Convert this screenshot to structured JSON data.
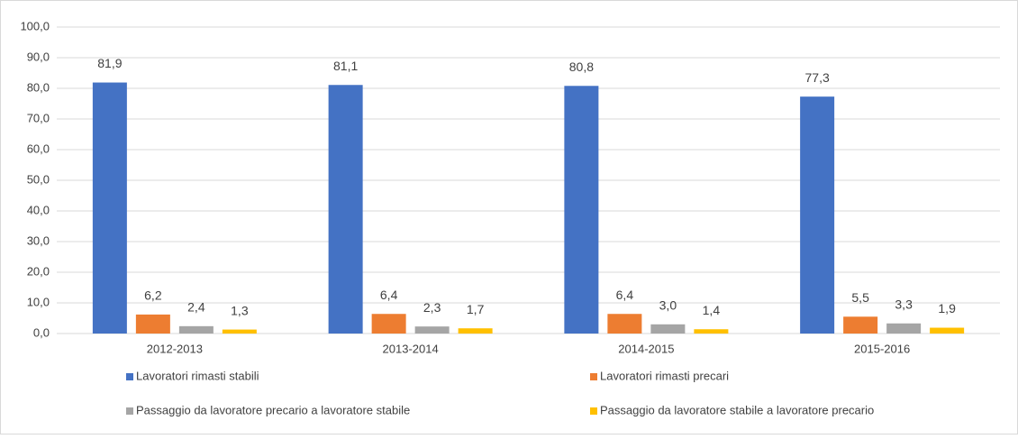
{
  "chart_data": {
    "type": "bar",
    "categories": [
      "2012-2013",
      "2013-2014",
      "2014-2015",
      "2015-2016"
    ],
    "series": [
      {
        "name": "Lavoratori rimasti stabili",
        "color": "#4472c4",
        "values": [
          81.9,
          81.1,
          80.8,
          77.3
        ],
        "value_labels": [
          "81,9",
          "81,1",
          "80,8",
          "77,3"
        ]
      },
      {
        "name": "Lavoratori rimasti precari",
        "color": "#ed7d31",
        "values": [
          6.2,
          6.4,
          6.4,
          5.5
        ],
        "value_labels": [
          "6,2",
          "6,4",
          "6,4",
          "5,5"
        ]
      },
      {
        "name": "Passaggio da lavoratore precario a lavoratore stabile",
        "color": "#a5a5a5",
        "values": [
          2.4,
          2.3,
          3.0,
          3.3
        ],
        "value_labels": [
          "2,4",
          "2,3",
          "3,0",
          "3,3"
        ]
      },
      {
        "name": "Passaggio da lavoratore stabile a lavoratore precario",
        "color": "#ffc000",
        "values": [
          1.3,
          1.7,
          1.4,
          1.9
        ],
        "value_labels": [
          "1,3",
          "1,7",
          "1,4",
          "1,9"
        ]
      }
    ],
    "ylim": [
      0,
      100
    ],
    "yticks": [
      {
        "value": 0,
        "label": "0,0"
      },
      {
        "value": 10,
        "label": "10,0"
      },
      {
        "value": 20,
        "label": "20,0"
      },
      {
        "value": 30,
        "label": "30,0"
      },
      {
        "value": 40,
        "label": "40,0"
      },
      {
        "value": 50,
        "label": "50,0"
      },
      {
        "value": 60,
        "label": "60,0"
      },
      {
        "value": 70,
        "label": "70,0"
      },
      {
        "value": 80,
        "label": "80,0"
      },
      {
        "value": 90,
        "label": "90,0"
      },
      {
        "value": 100,
        "label": "100,0"
      }
    ],
    "grid": true,
    "legend": "bottom"
  }
}
